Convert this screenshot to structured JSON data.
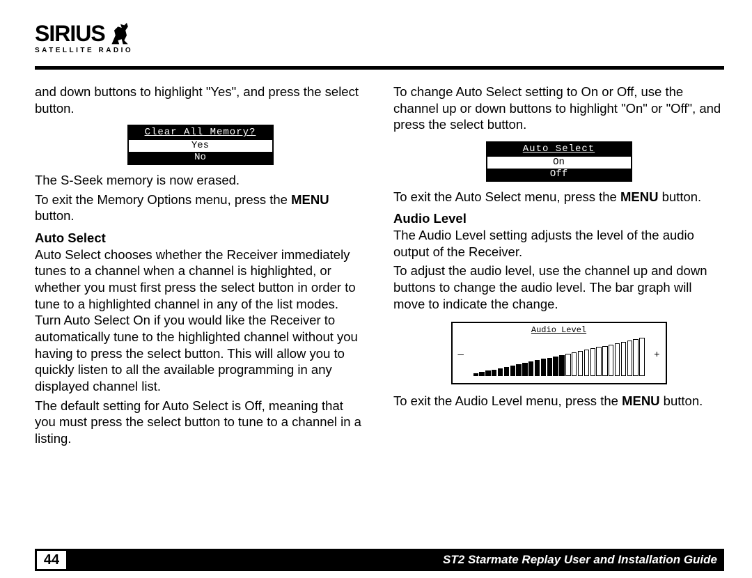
{
  "header": {
    "brand": "SIRIUS",
    "tagline": "SATELLITE RADIO"
  },
  "left": {
    "p1": "and down buttons to highlight \"Yes\", and press the select button.",
    "lcd1": {
      "title": "Clear All Memory?",
      "opt1": "Yes",
      "opt2": "No"
    },
    "p2": "The S-Seek memory is now erased.",
    "p3a": "To exit the Memory Options menu, press the ",
    "p3b": "MENU",
    "p3c": " button.",
    "h1": "Auto Select",
    "p4": "Auto Select chooses whether the Receiver immediately tunes to a channel when a channel is highlighted, or whether you must first press the select button in order to tune to a highlighted channel in any of the list modes. Turn Auto Select On if you would like the Receiver to automatically tune to the highlighted channel without you having to press the select button. This will allow you to quickly listen to all the available programming in any displayed channel list.",
    "p5": "The default setting for Auto Select is Off, meaning that you must press the select button to tune to a channel in a listing."
  },
  "right": {
    "p1": "To change Auto Select setting to On or Off, use the channel up or down buttons to highlight \"On\" or \"Off\", and press the select button.",
    "lcd1": {
      "title": "Auto Select",
      "opt1": "On",
      "opt2": "Off"
    },
    "p2a": "To exit the Auto Select menu, press the ",
    "p2b": "MENU",
    "p2c": " button.",
    "h1": "Audio Level",
    "p3": "The Audio Level setting adjusts the level of the audio output of the Receiver.",
    "p4": "To adjust the audio level, use the channel up and down buttons to change the audio level. The bar graph will move to indicate the change.",
    "lcd2": {
      "title": "Audio Level",
      "minus": "—",
      "plus": "+",
      "bars_total": 28,
      "bars_filled": 15
    },
    "p5a": "To exit the Audio Level menu, press the ",
    "p5b": "MENU",
    "p5c": " button."
  },
  "footer": {
    "page": "44",
    "guide": "ST2 Starmate Replay User and Installation Guide"
  }
}
